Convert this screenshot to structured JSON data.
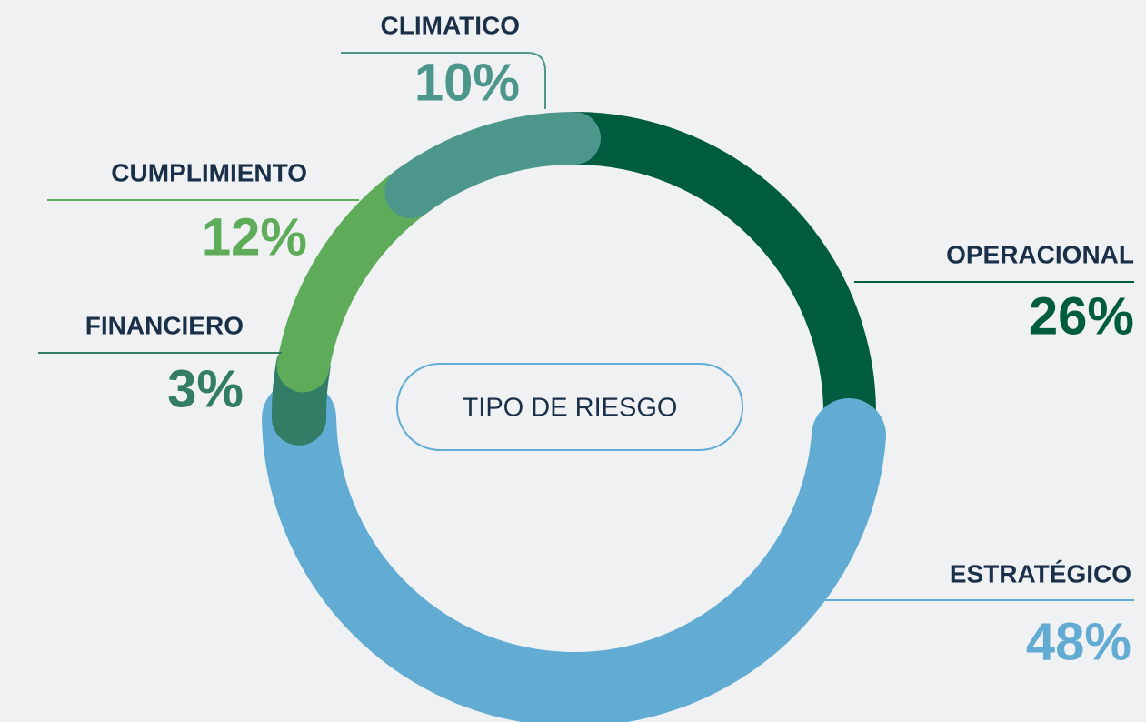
{
  "chart_data": {
    "type": "donut",
    "center_label": "TIPO DE RIESGO",
    "categories": [
      "OPERACIONAL",
      "ESTRATÉGICO",
      "FINANCIERO",
      "CUMPLIMIENTO",
      "CLIMATICO"
    ],
    "values": [
      26,
      48,
      3,
      12,
      10
    ],
    "value_labels": [
      "26%",
      "48%",
      "3%",
      "12%",
      "10%"
    ],
    "colors": [
      "#005c3e",
      "#62acd3",
      "#337c66",
      "#5eab5a",
      "#4c968c"
    ]
  }
}
